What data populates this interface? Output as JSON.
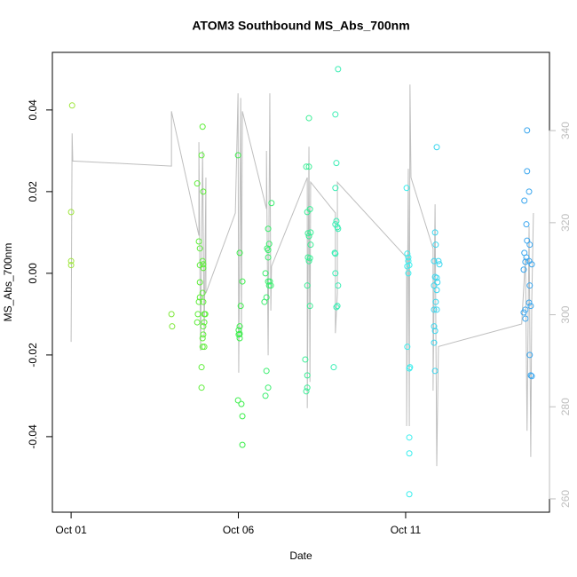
{
  "chart_data": {
    "type": "scatter",
    "title": "ATOM3 Southbound MS_Abs_700nm",
    "x_label": "Date",
    "y_label": "MS_Abs_700nm",
    "xlim": [
      0.44,
      15.3
    ],
    "xticks": [
      {
        "value": 1,
        "label": "Oct 01"
      },
      {
        "value": 6,
        "label": "Oct 06"
      },
      {
        "value": 11,
        "label": "Oct 11"
      }
    ],
    "ylim": [
      -0.0585,
      0.0541
    ],
    "yticks": [
      -0.04,
      -0.02,
      {
        "value": 0,
        "label": "0.00"
      },
      0.02,
      0.04
    ],
    "y2lim": [
      257.1,
      357.0
    ],
    "y2ticks": [
      260,
      280,
      300,
      320,
      340
    ],
    "y2_color": "#bebebe",
    "series": [
      {
        "color": "#9ee63a",
        "x": [
          1.03,
          1.0,
          1.0,
          1.0
        ],
        "values": [
          0.0411,
          0.015,
          0.003,
          0.002
        ]
      },
      {
        "color": "#7ee83a",
        "x": [
          4.0,
          4.02
        ],
        "values": [
          -0.01,
          -0.013
        ]
      },
      {
        "color": "#5eee3a",
        "x": [
          4.77,
          4.82,
          4.85,
          4.85,
          4.82,
          4.79,
          4.77,
          4.85,
          4.85,
          4.93,
          4.9,
          4.95,
          4.95,
          4.95,
          4.93,
          4.95,
          4.98,
          4.98,
          4.95,
          4.93,
          4.9,
          4.93,
          4.9,
          4.98,
          4.95,
          5.01,
          4.93
        ],
        "values": [
          0.022,
          0.0078,
          0.0061,
          -0.0059,
          -0.007,
          -0.01,
          -0.012,
          0.002,
          -0.0022,
          0.0359,
          0.0289,
          0.02,
          0.0013,
          0.0022,
          -0.0048,
          -0.007,
          -0.01,
          -0.012,
          -0.015,
          -0.0159,
          -0.023,
          -0.018,
          -0.028,
          -0.018,
          -0.013,
          -0.01,
          0.003
        ]
      },
      {
        "color": "#3aee4a",
        "x": [
          5.99,
          6.04,
          6.07,
          6.01,
          6.04,
          6.01,
          6.04,
          6.04,
          6.12,
          5.99,
          6.09,
          6.12,
          6.12
        ],
        "values": [
          0.0289,
          0.005,
          -0.008,
          -0.0139,
          -0.013,
          -0.015,
          -0.0159,
          -0.0148,
          -0.002,
          -0.0311,
          -0.032,
          -0.035,
          -0.042
        ]
      },
      {
        "color": "#3aee6e",
        "x": [
          6.78,
          6.84,
          6.81,
          6.86,
          6.89,
          6.89,
          6.89,
          6.89,
          6.92,
          6.94,
          6.97,
          6.99,
          6.84,
          6.89,
          6.81,
          6.92
        ],
        "values": [
          -0.007,
          -0.0059,
          0,
          0.0061,
          0.0109,
          0.0057,
          0.0039,
          -0.002,
          -0.003,
          -0.002,
          -0.003,
          0.0172,
          -0.0239,
          -0.028,
          -0.03,
          0.0072
        ]
      },
      {
        "color": "#3aee96",
        "x": [
          8.11,
          8.03,
          8.11,
          8.06,
          8.14,
          8.16,
          8.08,
          8.11,
          8.08,
          8.11,
          8.14,
          8.16,
          8.06,
          8.14,
          8.0,
          8.06,
          8.03,
          8.06
        ],
        "values": [
          0.038,
          0.0261,
          0.0261,
          0.015,
          0.0157,
          0.01,
          0.0098,
          0.0091,
          0.0039,
          0.003,
          0.0037,
          0.007,
          -0.003,
          -0.008,
          -0.0211,
          -0.025,
          -0.0289,
          -0.028
        ]
      },
      {
        "color": "#3aeeb4",
        "x": [
          8.98,
          8.9,
          8.93,
          8.9,
          8.93,
          8.9,
          8.96,
          8.98,
          8.88,
          8.9,
          8.9,
          8.98,
          8.96,
          8.93,
          8.85
        ],
        "values": [
          0.05,
          0.0389,
          0.027,
          0.0209,
          0.0128,
          0.012,
          0.0113,
          0.0109,
          0.005,
          0,
          0.0048,
          -0.003,
          -0.008,
          -0.0083,
          -0.023
        ]
      },
      {
        "color": "#3aeeee",
        "x": [
          11.03,
          11.05,
          11.08,
          11.05,
          11.11,
          11.08,
          11.08,
          11.13,
          11.11,
          11.11,
          11.11,
          11.11,
          11.05
        ],
        "values": [
          0.0209,
          0.0048,
          0.0039,
          0.0017,
          0.002,
          0.003,
          0,
          -0.023,
          -0.0233,
          -0.0402,
          -0.0441,
          -0.0541,
          -0.018
        ]
      },
      {
        "color": "#3ad6ee",
        "x": [
          11.93,
          11.88,
          11.9,
          11.85,
          11.88,
          11.98,
          11.85,
          11.93,
          11.95,
          11.93,
          11.9,
          11.85,
          11.85,
          11.85,
          11.88,
          11.88,
          12.01,
          11.93
        ],
        "values": [
          0.0309,
          0.01,
          0.007,
          0.003,
          -0.0009,
          0.003,
          -0.003,
          -0.0011,
          -0.0022,
          -0.0041,
          -0.007,
          -0.0089,
          -0.013,
          -0.017,
          -0.0141,
          -0.0239,
          0.0022,
          -0.0089
        ]
      },
      {
        "color": "#3aa6ee",
        "x": [
          14.63,
          14.63,
          14.69,
          14.55,
          14.61,
          14.63,
          14.71,
          14.55,
          14.61,
          14.58,
          14.53,
          14.69,
          14.77,
          14.71,
          14.69,
          14.74,
          14.58,
          14.53,
          14.58,
          14.71,
          14.74,
          14.77
        ],
        "values": [
          0.035,
          0.025,
          0.02,
          0.0178,
          0.012,
          0.008,
          0.007,
          0.005,
          0.0039,
          0.0028,
          0.0009,
          0.003,
          0.0022,
          -0.003,
          -0.0072,
          -0.008,
          -0.0089,
          -0.0096,
          -0.0111,
          -0.02,
          -0.025,
          -0.0252
        ]
      },
      {
        "type": "line",
        "axis": "y2",
        "color": "#bebebe",
        "x": [
          1.0,
          1.03,
          1.05,
          4.0,
          4.0,
          4.82,
          4.82,
          4.87,
          4.93,
          4.98,
          5.03,
          5.03,
          5.91,
          5.99,
          6.01,
          6.07,
          6.09,
          6.12,
          6.84,
          6.84,
          6.89,
          6.94,
          6.97,
          6.99,
          8.06,
          8.06,
          8.11,
          8.14,
          8.16,
          8.9,
          8.9,
          8.96,
          8.96,
          11.03,
          11.03,
          11.08,
          11.11,
          11.13,
          11.16,
          11.82,
          11.82,
          11.88,
          11.93,
          11.98,
          14.47,
          14.58,
          14.63,
          14.69,
          14.74,
          14.77,
          14.82
        ],
        "values": [
          294.1,
          339.4,
          333.4,
          332.3,
          344.2,
          317.2,
          337.5,
          292.2,
          335.6,
          295.1,
          329.8,
          304.7,
          322.1,
          348.1,
          287.4,
          347.1,
          295.1,
          344.2,
          323.0,
          335.6,
          291.2,
          348.1,
          300.9,
          310.5,
          329.8,
          279.7,
          336.5,
          285.4,
          328.8,
          322.1,
          296.0,
          304.7,
          328.8,
          312.4,
          275.8,
          331.7,
          275.8,
          350.0,
          329.8,
          314.4,
          283.5,
          324.0,
          267.1,
          293.1,
          298.0,
          312.4,
          274.8,
          319.2,
          269.1,
          302.8,
          322.1
        ]
      }
    ]
  }
}
